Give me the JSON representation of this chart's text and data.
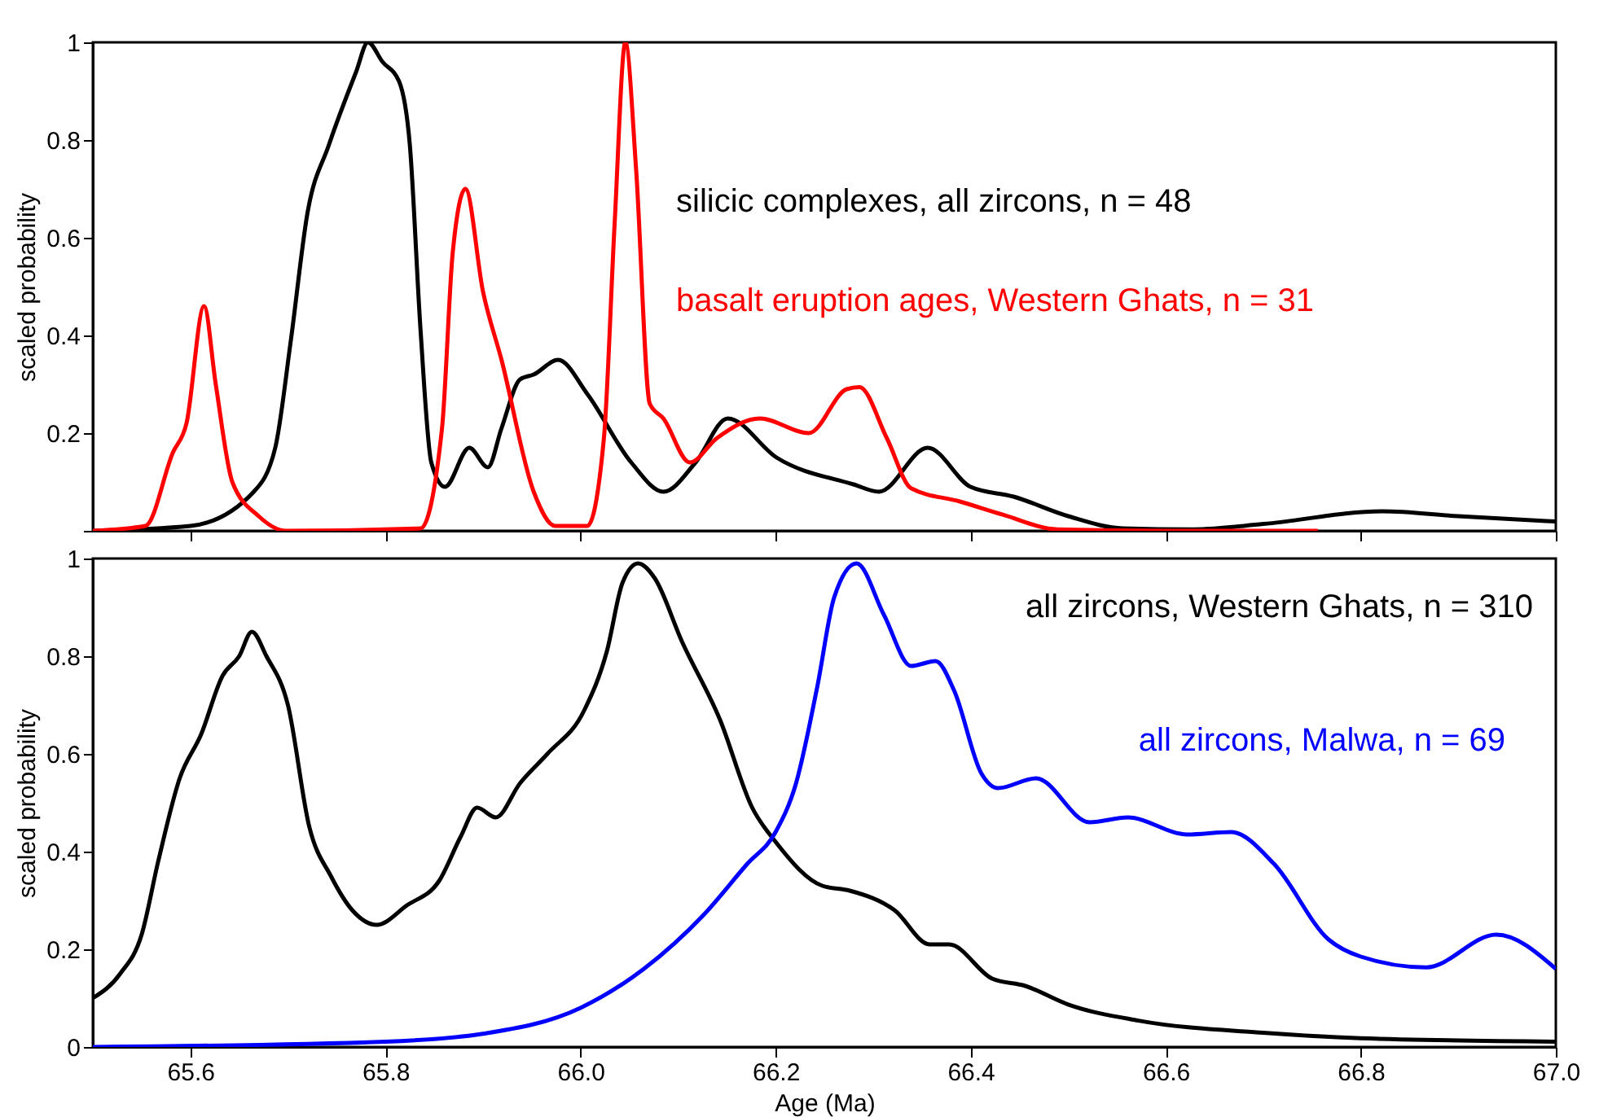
{
  "chart_data": [
    {
      "type": "line",
      "ylabel": "scaled probability",
      "xlim": [
        65.5,
        67.0
      ],
      "xticks": [
        65.6,
        65.8,
        66.0,
        66.2,
        66.4,
        66.6,
        66.8,
        67.0
      ],
      "ylim": [
        0,
        1
      ],
      "yticks": [
        {
          "value": 0,
          "label": null
        },
        0.2,
        0.4,
        0.6,
        0.8,
        1
      ],
      "tick_labels": "y",
      "grid": false,
      "series": [
        {
          "name": "silicic complexes, all zircons, n = 48",
          "color": "#000000",
          "x": [
            65.5,
            65.6,
            65.665,
            65.687,
            65.703,
            65.72,
            65.742,
            65.77,
            65.782,
            65.797,
            65.814,
            65.825,
            65.836,
            65.847,
            65.861,
            65.886,
            65.905,
            65.919,
            65.938,
            65.952,
            65.977,
            66.007,
            66.052,
            66.085,
            66.118,
            66.151,
            66.201,
            66.28,
            66.306,
            66.356,
            66.4,
            66.444,
            66.5,
            66.556,
            66.628,
            66.7,
            66.822,
            66.9,
            67.0
          ],
          "values": [
            0,
            0.01,
            0.08,
            0.17,
            0.39,
            0.65,
            0.79,
            0.94,
            1.0,
            0.96,
            0.92,
            0.79,
            0.41,
            0.14,
            0.09,
            0.17,
            0.13,
            0.21,
            0.31,
            0.32,
            0.35,
            0.28,
            0.14,
            0.08,
            0.14,
            0.23,
            0.15,
            0.095,
            0.08,
            0.17,
            0.09,
            0.07,
            0.03,
            0.005,
            0.003,
            0.014,
            0.04,
            0.03,
            0.019
          ]
        },
        {
          "name": "basalt eruption ages, Western Ghats, n = 31",
          "color": "#ff0000",
          "x": [
            65.5,
            65.554,
            65.582,
            65.596,
            65.614,
            65.626,
            65.643,
            65.67,
            65.698,
            65.836,
            65.858,
            65.869,
            65.882,
            65.9,
            65.919,
            65.952,
            65.974,
            66.007,
            66.024,
            66.035,
            66.046,
            66.057,
            66.071,
            66.085,
            66.112,
            66.14,
            66.184,
            66.234,
            66.273,
            66.286,
            66.314,
            66.339,
            66.389,
            66.433,
            66.489,
            66.6,
            66.756
          ],
          "values": [
            0,
            0.01,
            0.16,
            0.22,
            0.46,
            0.3,
            0.1,
            0.03,
            0,
            0.005,
            0.21,
            0.57,
            0.7,
            0.49,
            0.35,
            0.08,
            0.01,
            0.01,
            0.19,
            0.63,
            1.0,
            0.74,
            0.26,
            0.23,
            0.14,
            0.19,
            0.23,
            0.2,
            0.29,
            0.294,
            0.19,
            0.087,
            0.06,
            0.033,
            0.003,
            0,
            0
          ]
        }
      ]
    },
    {
      "type": "line",
      "xlabel": "Age (Ma)",
      "ylabel": "scaled probability",
      "xlim": [
        65.5,
        67.0
      ],
      "xticks": [
        65.6,
        65.8,
        {
          "value": 66,
          "label": "66.0"
        },
        66.2,
        66.4,
        66.6,
        66.8,
        {
          "value": 67,
          "label": "67.0"
        }
      ],
      "ylim": [
        0,
        1
      ],
      "yticks": [
        0,
        0.2,
        0.4,
        0.6,
        0.8,
        1
      ],
      "grid": false,
      "series": [
        {
          "name": "all zircons, Western Ghats, n = 310",
          "color": "#000000",
          "x": [
            65.5,
            65.528,
            65.55,
            65.567,
            65.589,
            65.611,
            65.633,
            65.65,
            65.663,
            65.678,
            65.7,
            65.722,
            65.744,
            65.766,
            65.791,
            65.822,
            65.855,
            65.877,
            65.894,
            65.913,
            65.938,
            65.966,
            66.004,
            66.027,
            66.043,
            66.059,
            66.076,
            66.104,
            66.143,
            66.176,
            66.2,
            66.248,
            66.276,
            66.322,
            66.358,
            66.378,
            66.422,
            66.456,
            66.5,
            66.572,
            66.7,
            66.8,
            67.0
          ],
          "values": [
            0.1,
            0.15,
            0.23,
            0.38,
            0.55,
            0.64,
            0.76,
            0.8,
            0.85,
            0.8,
            0.7,
            0.45,
            0.35,
            0.28,
            0.25,
            0.29,
            0.34,
            0.43,
            0.49,
            0.47,
            0.54,
            0.6,
            0.69,
            0.81,
            0.95,
            0.99,
            0.96,
            0.83,
            0.67,
            0.49,
            0.42,
            0.33,
            0.32,
            0.28,
            0.21,
            0.21,
            0.14,
            0.125,
            0.087,
            0.054,
            0.029,
            0.018,
            0.011
          ]
        },
        {
          "name": "all zircons, Malwa, n = 69",
          "color": "#0000ff",
          "x": [
            65.5,
            65.8,
            65.9,
            66.0,
            66.065,
            66.126,
            66.171,
            66.2,
            66.221,
            66.243,
            66.26,
            66.283,
            66.311,
            66.339,
            66.364,
            66.383,
            66.411,
            66.428,
            66.467,
            66.522,
            66.561,
            66.622,
            66.667,
            66.711,
            66.767,
            66.8,
            66.867,
            66.939,
            67.0
          ],
          "values": [
            0,
            0.011,
            0.027,
            0.08,
            0.16,
            0.27,
            0.375,
            0.44,
            0.54,
            0.74,
            0.92,
            0.99,
            0.885,
            0.78,
            0.79,
            0.73,
            0.56,
            0.53,
            0.55,
            0.46,
            0.47,
            0.435,
            0.44,
            0.375,
            0.22,
            0.185,
            0.163,
            0.23,
            0.16
          ]
        }
      ]
    }
  ]
}
